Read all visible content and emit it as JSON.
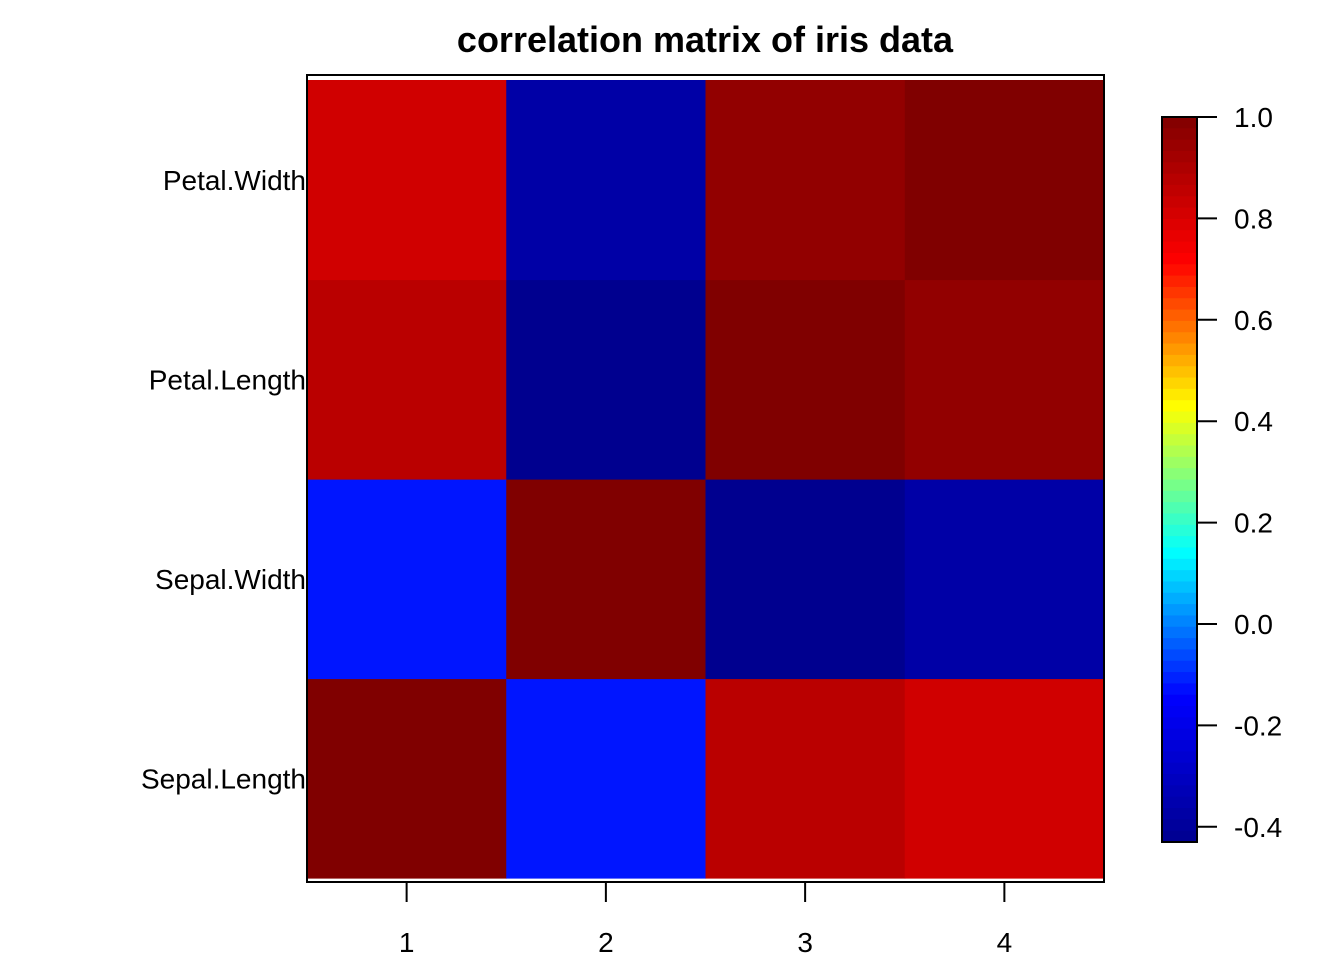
{
  "chart_data": {
    "type": "heatmap",
    "title": "correlation matrix of iris data",
    "xlabel": "",
    "ylabel": "",
    "x_tick_labels": [
      "1",
      "2",
      "3",
      "4"
    ],
    "y_tick_labels": [
      "Sepal.Length",
      "Sepal.Width",
      "Petal.Length",
      "Petal.Width"
    ],
    "matrix": [
      [
        1.0,
        -0.12,
        0.87,
        0.82
      ],
      [
        -0.12,
        1.0,
        -0.43,
        -0.37
      ],
      [
        0.87,
        -0.43,
        1.0,
        0.96
      ],
      [
        0.82,
        -0.37,
        0.96,
        1.0
      ]
    ],
    "matrix_note": "",
    "colorbar": {
      "min": -0.43,
      "max": 1.0,
      "ticks": [
        1.0,
        0.8,
        0.6,
        0.4,
        0.2,
        0.0,
        -0.2,
        -0.4
      ],
      "tick_labels": [
        "1.0",
        "0.8",
        "0.6",
        "0.4",
        "0.2",
        "0.0",
        "-0.2",
        "-0.4"
      ],
      "colormap": [
        "#00008F",
        "#0000FF",
        "#00FFFF",
        "#FFFF00",
        "#FF0000",
        "#800000"
      ]
    },
    "grid": false,
    "legend": "colorbar-right"
  }
}
